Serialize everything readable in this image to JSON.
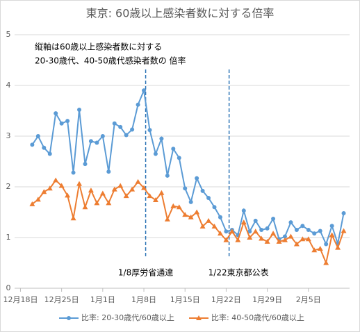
{
  "chart_data": {
    "type": "line",
    "title": "東京: 60歳以上感染者数に対する倍率",
    "annotation_lines": [
      "縦軸は60歳以上感染者数に対する",
      "20-30歳代、40-50歳代感染者数の 倍率"
    ],
    "vlines": [
      {
        "value": 21.3,
        "label": "1/8厚労省通達"
      },
      {
        "value": 35.5,
        "label": "1/22東京都公表"
      }
    ],
    "x": [
      2,
      3,
      4,
      5,
      6,
      7,
      8,
      9,
      10,
      11,
      12,
      13,
      14,
      15,
      16,
      17,
      18,
      19,
      20,
      21,
      22,
      23,
      24,
      25,
      26,
      27,
      28,
      29,
      30,
      31,
      32,
      33,
      34,
      35,
      36,
      37,
      38,
      39,
      40,
      41,
      42,
      43,
      44,
      45,
      46,
      47,
      48,
      49,
      50,
      51,
      52,
      53,
      54,
      55
    ],
    "xlim": [
      -1,
      56
    ],
    "xticks": [
      {
        "value": 0,
        "label": "12月18日"
      },
      {
        "value": 7,
        "label": "12月25日"
      },
      {
        "value": 14,
        "label": "1月1日"
      },
      {
        "value": 21,
        "label": "1月8日"
      },
      {
        "value": 28,
        "label": "1月15日"
      },
      {
        "value": 35,
        "label": "1月22日"
      },
      {
        "value": 42,
        "label": "1月29日"
      },
      {
        "value": 49,
        "label": "2月5日"
      }
    ],
    "ylim": [
      0,
      5
    ],
    "yticks": [
      0,
      1,
      2,
      3,
      4,
      5
    ],
    "grid": true,
    "legend": "bottom",
    "series": [
      {
        "name": "比率: 20-30歳代/60歳以上",
        "color": "#5b9bd5",
        "marker": "circle",
        "values": [
          2.83,
          3.0,
          2.77,
          2.65,
          3.45,
          3.25,
          3.3,
          2.28,
          3.52,
          2.45,
          2.9,
          2.87,
          3.0,
          2.3,
          3.25,
          3.18,
          3.02,
          3.13,
          3.62,
          3.9,
          3.12,
          2.65,
          2.95,
          2.22,
          2.75,
          2.57,
          1.97,
          1.7,
          2.17,
          1.92,
          1.78,
          1.6,
          1.4,
          1.12,
          1.15,
          1.05,
          1.53,
          1.12,
          1.33,
          1.15,
          1.18,
          1.37,
          0.97,
          1.02,
          1.3,
          1.15,
          1.23,
          1.15,
          1.08,
          1.13,
          0.87,
          1.23,
          0.88,
          1.48
        ]
      },
      {
        "name": "比率: 40-50歳代/60歳以上",
        "color": "#ed7d31",
        "marker": "triangle",
        "values": [
          1.66,
          1.75,
          1.9,
          1.97,
          2.13,
          2.02,
          1.83,
          1.38,
          2.06,
          1.6,
          1.93,
          1.68,
          1.87,
          1.68,
          1.95,
          2.02,
          1.82,
          1.95,
          2.1,
          1.98,
          1.82,
          1.74,
          1.88,
          1.36,
          1.62,
          1.6,
          1.45,
          1.4,
          1.5,
          1.22,
          1.33,
          1.22,
          1.08,
          0.95,
          1.12,
          0.95,
          1.3,
          1.0,
          1.12,
          0.98,
          0.92,
          1.08,
          0.92,
          0.95,
          1.02,
          0.87,
          0.97,
          0.97,
          0.75,
          0.78,
          0.5,
          1.05,
          0.8,
          1.13
        ]
      }
    ]
  }
}
